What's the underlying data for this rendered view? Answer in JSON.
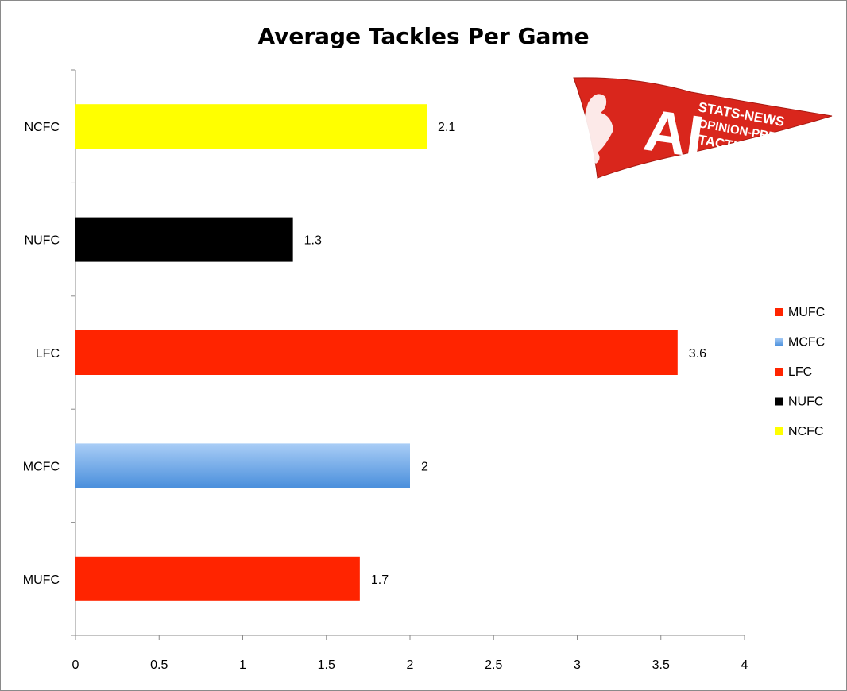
{
  "chart_data": {
    "type": "bar",
    "orientation": "horizontal",
    "title": "Average Tackles Per Game",
    "xlabel": "",
    "ylabel": "",
    "categories": [
      "MUFC",
      "MCFC",
      "LFC",
      "NUFC",
      "NCFC"
    ],
    "values": [
      1.7,
      2,
      3.6,
      1.3,
      2.1
    ],
    "value_labels": [
      "1.7",
      "2",
      "3.6",
      "1.3",
      "2.1"
    ],
    "colors": [
      "#ff2400",
      "#7fb2ea",
      "#ff2400",
      "#000000",
      "#ffff00"
    ],
    "xlim": [
      0,
      4
    ],
    "xticks": [
      "0",
      "0.5",
      "1",
      "1.5",
      "2",
      "2.5",
      "3",
      "3.5",
      "4"
    ],
    "grid": false,
    "legend": {
      "position": "right",
      "entries": [
        {
          "label": "MUFC",
          "color": "#ff2400"
        },
        {
          "label": "MCFC",
          "color": "#7fb2ea"
        },
        {
          "label": "LFC",
          "color": "#ff2400"
        },
        {
          "label": "NUFC",
          "color": "#000000"
        },
        {
          "label": "NCFC",
          "color": "#ffff00"
        }
      ]
    }
  },
  "logo": {
    "letters": "AI",
    "lines": [
      "STATS-NEWS",
      "OPINION-PREVIEWS",
      "TACTICS"
    ],
    "color": "#d9261c"
  }
}
